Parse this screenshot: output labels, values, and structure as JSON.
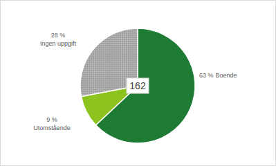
{
  "chart_data": {
    "type": "pie",
    "categories": [
      "Boende",
      "Utomstående",
      "Ingen uppgift"
    ],
    "values": [
      63,
      9,
      28
    ],
    "value_labels": [
      "63 %",
      "9 %",
      "28 %"
    ],
    "colors": [
      "#1e7b34",
      "#8cc31e",
      "#a6a6a6"
    ],
    "data_labels": true,
    "total": 162
  }
}
